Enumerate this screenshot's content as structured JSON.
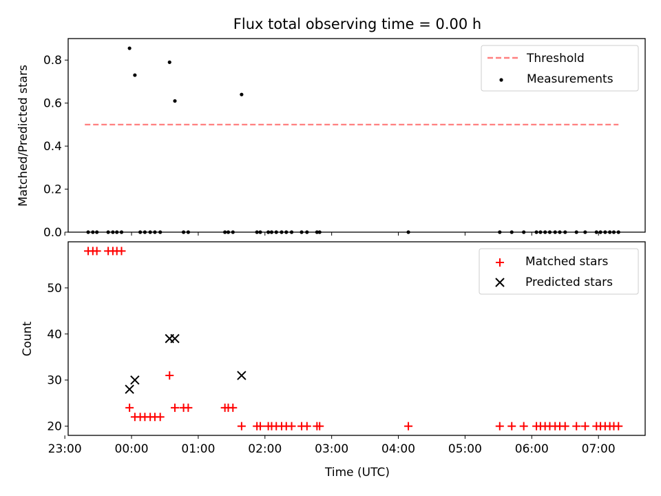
{
  "chart_data": [
    {
      "type": "scatter",
      "title": "Flux total observing time = 0.00 h",
      "xlabel": "",
      "ylabel": "Matched/Predicted stars",
      "xlim": [
        -0.95,
        7.7
      ],
      "ylim": [
        0,
        0.9
      ],
      "yticks": [
        0.0,
        0.2,
        0.4,
        0.6,
        0.8
      ],
      "ytick_labels": [
        "0.0",
        "0.2",
        "0.4",
        "0.6",
        "0.8"
      ],
      "xticks": [
        -1,
        0,
        1,
        2,
        3,
        4,
        5,
        6,
        7
      ],
      "xtick_labels": [],
      "legend_position": "top-right",
      "grid": false,
      "series": [
        {
          "name": "Threshold",
          "kind": "dashed-line",
          "color": "#ff7f7f",
          "x": [
            -0.7,
            7.3
          ],
          "y": [
            0.5,
            0.5
          ]
        },
        {
          "name": "Measurements",
          "kind": "dot",
          "color": "#000000",
          "x": [
            -0.65,
            -0.58,
            -0.52,
            -0.35,
            -0.28,
            -0.22,
            -0.15,
            -0.03,
            0.05,
            0.13,
            0.2,
            0.28,
            0.35,
            0.43,
            0.57,
            0.65,
            0.78,
            0.85,
            1.4,
            1.45,
            1.52,
            1.65,
            1.88,
            1.93,
            2.05,
            2.1,
            2.17,
            2.25,
            2.32,
            2.4,
            2.55,
            2.63,
            2.78,
            2.82,
            4.15,
            5.52,
            5.7,
            5.88,
            6.07,
            6.13,
            6.2,
            6.27,
            6.35,
            6.42,
            6.5,
            6.67,
            6.8,
            6.97,
            7.03,
            7.1,
            7.17,
            7.23,
            7.3
          ],
          "y": [
            0,
            0,
            0,
            0,
            0,
            0,
            0,
            0.855,
            0.73,
            0,
            0,
            0,
            0,
            0,
            0.79,
            0.61,
            0,
            0,
            0,
            0,
            0,
            0.64,
            0,
            0,
            0,
            0,
            0,
            0,
            0,
            0,
            0,
            0,
            0,
            0,
            0,
            0,
            0,
            0,
            0,
            0,
            0,
            0,
            0,
            0,
            0,
            0,
            0,
            0,
            0,
            0,
            0,
            0,
            0
          ]
        }
      ]
    },
    {
      "type": "scatter",
      "title": "",
      "xlabel": "Time (UTC)",
      "ylabel": "Count",
      "xlim": [
        -0.95,
        7.7
      ],
      "ylim": [
        18,
        60
      ],
      "yticks": [
        20,
        30,
        40,
        50
      ],
      "ytick_labels": [
        "20",
        "30",
        "40",
        "50"
      ],
      "xticks": [
        -1,
        0,
        1,
        2,
        3,
        4,
        5,
        6,
        7
      ],
      "xtick_labels": [
        "23:00",
        "00:00",
        "01:00",
        "02:00",
        "03:00",
        "04:00",
        "05:00",
        "06:00",
        "07:00"
      ],
      "legend_position": "top-right",
      "grid": false,
      "series": [
        {
          "name": "Matched stars",
          "kind": "plus",
          "color": "#ff0000",
          "x": [
            -0.65,
            -0.58,
            -0.52,
            -0.35,
            -0.28,
            -0.22,
            -0.15,
            -0.03,
            0.05,
            0.13,
            0.2,
            0.28,
            0.35,
            0.43,
            0.57,
            0.65,
            0.78,
            0.85,
            1.4,
            1.45,
            1.52,
            1.65,
            1.88,
            1.93,
            2.05,
            2.1,
            2.17,
            2.25,
            2.32,
            2.4,
            2.55,
            2.63,
            2.78,
            2.82,
            4.15,
            5.52,
            5.7,
            5.88,
            6.07,
            6.13,
            6.2,
            6.27,
            6.35,
            6.42,
            6.5,
            6.67,
            6.8,
            6.97,
            7.03,
            7.1,
            7.17,
            7.23,
            7.3
          ],
          "y": [
            58,
            58,
            58,
            58,
            58,
            58,
            58,
            24,
            22,
            22,
            22,
            22,
            22,
            22,
            31,
            24,
            24,
            24,
            24,
            24,
            24,
            20,
            20,
            20,
            20,
            20,
            20,
            20,
            20,
            20,
            20,
            20,
            20,
            20,
            20,
            20,
            20,
            20,
            20,
            20,
            20,
            20,
            20,
            20,
            20,
            20,
            20,
            20,
            20,
            20,
            20,
            20,
            20
          ]
        },
        {
          "name": "Predicted stars",
          "kind": "cross",
          "color": "#000000",
          "x": [
            -0.03,
            0.05,
            0.57,
            0.65,
            1.65
          ],
          "y": [
            28,
            30,
            39,
            39,
            31
          ]
        }
      ]
    }
  ]
}
